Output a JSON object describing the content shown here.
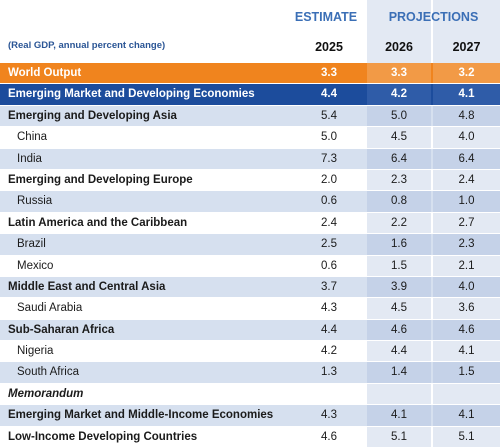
{
  "header": {
    "estimate_label": "ESTIMATE",
    "projections_label": "PROJECTIONS",
    "note": "(Real GDP, annual percent change)",
    "years": [
      "2025",
      "2026",
      "2027"
    ]
  },
  "rows": [
    {
      "label": "World Output",
      "style": "world",
      "level": 0,
      "values": [
        "3.3",
        "3.3",
        "3.2"
      ]
    },
    {
      "label": "Emerging Market and Developing Economies",
      "style": "emde",
      "level": 0,
      "values": [
        "4.4",
        "4.2",
        "4.1"
      ]
    },
    {
      "label": "Emerging and Developing Asia",
      "style": "tint",
      "level": 1,
      "values": [
        "5.4",
        "5.0",
        "4.8"
      ]
    },
    {
      "label": "China",
      "style": "plain",
      "level": 2,
      "values": [
        "5.0",
        "4.5",
        "4.0"
      ]
    },
    {
      "label": "India",
      "style": "tint",
      "level": 2,
      "values": [
        "7.3",
        "6.4",
        "6.4"
      ]
    },
    {
      "label": "Emerging and Developing Europe",
      "style": "plain",
      "level": 1,
      "values": [
        "2.0",
        "2.3",
        "2.4"
      ]
    },
    {
      "label": "Russia",
      "style": "tint",
      "level": 2,
      "values": [
        "0.6",
        "0.8",
        "1.0"
      ]
    },
    {
      "label": "Latin America and the Caribbean",
      "style": "plain",
      "level": 1,
      "values": [
        "2.4",
        "2.2",
        "2.7"
      ]
    },
    {
      "label": "Brazil",
      "style": "tint",
      "level": 2,
      "values": [
        "2.5",
        "1.6",
        "2.3"
      ]
    },
    {
      "label": "Mexico",
      "style": "plain",
      "level": 2,
      "values": [
        "0.6",
        "1.5",
        "2.1"
      ]
    },
    {
      "label": "Middle East and Central Asia",
      "style": "tint",
      "level": 1,
      "values": [
        "3.7",
        "3.9",
        "4.0"
      ]
    },
    {
      "label": "Saudi Arabia",
      "style": "plain",
      "level": 2,
      "values": [
        "4.3",
        "4.5",
        "3.6"
      ]
    },
    {
      "label": "Sub-Saharan Africa",
      "style": "tint",
      "level": 1,
      "values": [
        "4.4",
        "4.6",
        "4.6"
      ]
    },
    {
      "label": "Nigeria",
      "style": "plain",
      "level": 2,
      "values": [
        "4.2",
        "4.4",
        "4.1"
      ]
    },
    {
      "label": "South Africa",
      "style": "tint",
      "level": 2,
      "values": [
        "1.3",
        "1.4",
        "1.5"
      ]
    },
    {
      "label": "Memorandum",
      "style": "memo",
      "level": 1,
      "values": [
        "",
        "",
        ""
      ]
    },
    {
      "label": "Emerging Market and Middle-Income Economies",
      "style": "tint",
      "level": 1,
      "values": [
        "4.3",
        "4.1",
        "4.1"
      ]
    },
    {
      "label": "Low-Income Developing Countries",
      "style": "plain",
      "level": 1,
      "values": [
        "4.6",
        "5.1",
        "5.1"
      ]
    }
  ],
  "colors": {
    "accent_orange": "#f0841e",
    "accent_blue": "#1c4c9c",
    "header_blue": "#3b6fb6",
    "row_tint": "#d6e0ef"
  }
}
